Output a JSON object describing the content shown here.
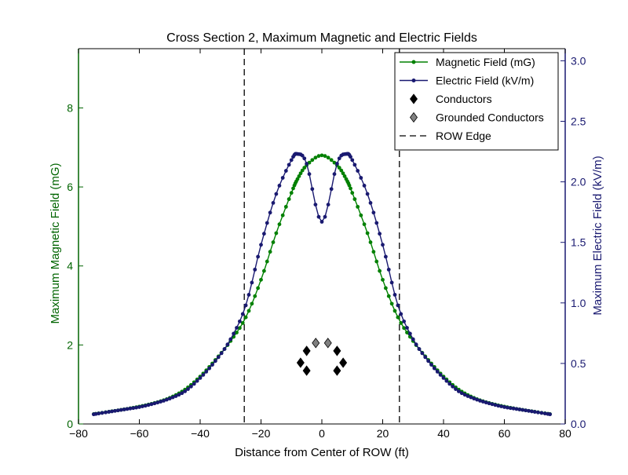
{
  "chart_data": {
    "type": "line",
    "title": "Cross Section 2, Maximum Magnetic and Electric Fields",
    "xlabel": "Distance from Center of ROW (ft)",
    "ylabel_left": "Maximum Magnetic Field (mG)",
    "ylabel_right": "Maximum Electric Field (kV/m)",
    "xlim": [
      -80,
      80
    ],
    "ylim_left": [
      0,
      9.5
    ],
    "ylim_right": [
      0,
      3.1
    ],
    "xticks": [
      -80,
      -60,
      -40,
      -20,
      0,
      20,
      40,
      60,
      80
    ],
    "xtick_labels": [
      "−80",
      "−60",
      "−40",
      "−20",
      "0",
      "20",
      "40",
      "60",
      "80"
    ],
    "yticks_left": [
      0,
      2,
      4,
      6,
      8
    ],
    "yticks_right": [
      0.0,
      0.5,
      1.0,
      1.5,
      2.0,
      2.5,
      3.0
    ],
    "ytick_labels_right": [
      "0.0",
      "0.5",
      "1.0",
      "1.5",
      "2.0",
      "2.5",
      "3.0"
    ],
    "grid": false,
    "legend_position": "top-right",
    "legend": [
      {
        "label": "Magnetic Field (mG)",
        "kind": "line-dot",
        "color": "#008000"
      },
      {
        "label": "Electric Field (kV/m)",
        "kind": "line-dot",
        "color": "#191970"
      },
      {
        "label": "Conductors",
        "kind": "diamond",
        "color": "#000000"
      },
      {
        "label": "Grounded Conductors",
        "kind": "diamond",
        "color": "#808080"
      },
      {
        "label": "ROW Edge",
        "kind": "dashed",
        "color": "#000000"
      }
    ],
    "colors": {
      "magnetic": "#008000",
      "electric": "#191970",
      "left_axis": "#006400",
      "right_axis": "#191970"
    },
    "x": [
      -75,
      -70,
      -65,
      -60,
      -55,
      -50,
      -45,
      -40,
      -35,
      -30,
      -25,
      -20,
      -15,
      -10,
      -8,
      -5,
      0,
      5,
      8,
      10,
      15,
      20,
      25,
      30,
      35,
      40,
      45,
      50,
      55,
      60,
      65,
      70,
      75
    ],
    "series": [
      {
        "name": "Magnetic Field (mG)",
        "axis": "left",
        "values": [
          0.25,
          0.31,
          0.37,
          0.44,
          0.53,
          0.66,
          0.87,
          1.2,
          1.62,
          2.1,
          2.7,
          3.65,
          4.83,
          5.85,
          6.2,
          6.55,
          6.8,
          6.55,
          6.2,
          5.85,
          4.83,
          3.65,
          2.7,
          2.1,
          1.62,
          1.2,
          0.87,
          0.66,
          0.53,
          0.44,
          0.37,
          0.31,
          0.25
        ]
      },
      {
        "name": "Electric Field (kV/m)",
        "axis": "right",
        "values": [
          0.08,
          0.1,
          0.12,
          0.14,
          0.17,
          0.21,
          0.27,
          0.38,
          0.52,
          0.7,
          0.98,
          1.48,
          1.9,
          2.18,
          2.23,
          2.15,
          1.67,
          2.15,
          2.23,
          2.18,
          1.9,
          1.48,
          0.98,
          0.7,
          0.52,
          0.38,
          0.27,
          0.21,
          0.17,
          0.14,
          0.12,
          0.1,
          0.08
        ]
      }
    ],
    "conductors": [
      {
        "x": -7,
        "y": 1.55
      },
      {
        "x": -5,
        "y": 1.35
      },
      {
        "x": -5,
        "y": 1.85
      },
      {
        "x": 5,
        "y": 1.85
      },
      {
        "x": 5,
        "y": 1.35
      },
      {
        "x": 7,
        "y": 1.55
      }
    ],
    "grounded_conductors": [
      {
        "x": -2,
        "y": 2.05
      },
      {
        "x": 2,
        "y": 2.05
      }
    ],
    "row_edges": [
      -25.5,
      25.5
    ]
  }
}
